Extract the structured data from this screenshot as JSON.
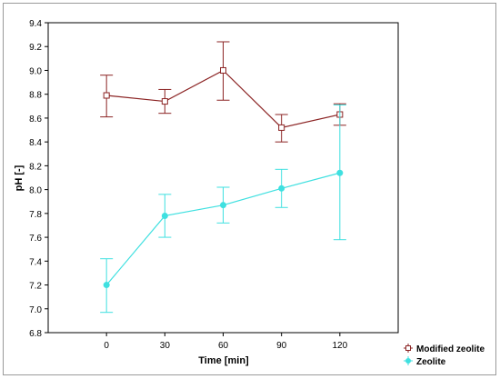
{
  "chart_data": {
    "type": "line",
    "title": "",
    "xlabel": "Time [min]",
    "ylabel": "pH [-]",
    "x": [
      0,
      30,
      60,
      90,
      120
    ],
    "xlim": [
      -30,
      150
    ],
    "ylim": [
      6.8,
      9.4
    ],
    "x_ticks": [
      "0",
      "30",
      "60",
      "90",
      "120"
    ],
    "y_ticks": [
      "6.8",
      "7.0",
      "7.2",
      "7.4",
      "7.6",
      "7.8",
      "8.0",
      "8.2",
      "8.4",
      "8.6",
      "8.8",
      "9.0",
      "9.2",
      "9.4"
    ],
    "grid": false,
    "legend_position": "bottom-right",
    "series": [
      {
        "name": "Modified zeolite",
        "color": "#8b2323",
        "marker": "square",
        "values": [
          8.79,
          8.74,
          9.0,
          8.52,
          8.63
        ],
        "err_low": [
          8.61,
          8.64,
          8.75,
          8.4,
          8.54
        ],
        "err_high": [
          8.96,
          8.84,
          9.24,
          8.63,
          8.72
        ]
      },
      {
        "name": "Zeolite",
        "color": "#3fe0e0",
        "marker": "circle",
        "values": [
          7.2,
          7.78,
          7.87,
          8.01,
          8.14
        ],
        "err_low": [
          6.97,
          7.6,
          7.72,
          7.85,
          7.58
        ],
        "err_high": [
          7.42,
          7.96,
          8.02,
          8.17,
          8.71
        ]
      }
    ]
  }
}
